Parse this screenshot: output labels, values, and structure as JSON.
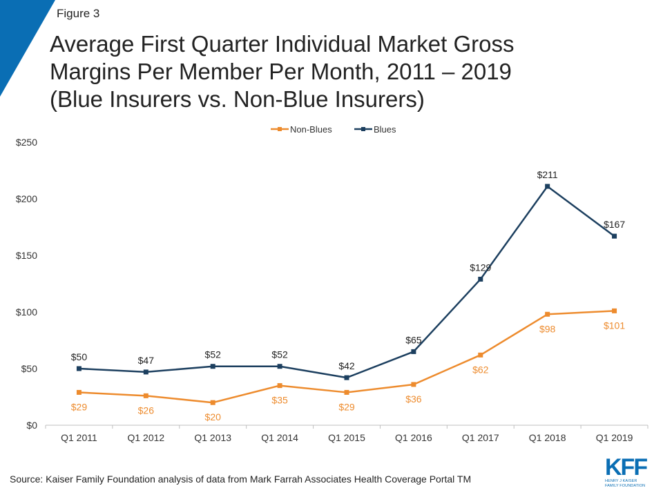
{
  "figure_label": "Figure 3",
  "title_lines": [
    "Average First Quarter Individual Market Gross",
    "Margins Per Member Per Month, 2011 – 2019",
    "(Blue Insurers vs. Non-Blue Insurers)"
  ],
  "source": "Source: Kaiser Family Foundation analysis of data from Mark Farrah Associates Health Coverage Portal TM",
  "logo": {
    "letters": "KFF",
    "sub_lines": [
      "HENRY J KAISER",
      "FAMILY FOUNDATION"
    ]
  },
  "colors": {
    "accent": "#0a6eb4",
    "non_blues": "#ed8b2d",
    "blues": "#1c3f5f",
    "axis": "#bfbfbf"
  },
  "chart_data": {
    "type": "line",
    "categories": [
      "Q1 2011",
      "Q1 2012",
      "Q1 2013",
      "Q1 2014",
      "Q1 2015",
      "Q1 2016",
      "Q1 2017",
      "Q1 2018",
      "Q1 2019"
    ],
    "y_ticks": [
      "$0",
      "$50",
      "$100",
      "$150",
      "$200",
      "$250"
    ],
    "y_tick_values": [
      0,
      50,
      100,
      150,
      200,
      250
    ],
    "ylim": [
      0,
      250
    ],
    "grid": false,
    "legend_position": "top-center",
    "series": [
      {
        "name": "Non-Blues",
        "color": "#ed8b2d",
        "values": [
          29,
          26,
          20,
          35,
          29,
          36,
          62,
          98,
          101
        ],
        "labels": [
          "$29",
          "$26",
          "$20",
          "$35",
          "$29",
          "$36",
          "$62",
          "$98",
          "$101"
        ],
        "label_position": "below"
      },
      {
        "name": "Blues",
        "color": "#1c3f5f",
        "values": [
          50,
          47,
          52,
          52,
          42,
          65,
          129,
          211,
          167
        ],
        "labels": [
          "$50",
          "$47",
          "$52",
          "$52",
          "$42",
          "$65",
          "$129",
          "$211",
          "$167"
        ],
        "label_position": "above"
      }
    ]
  }
}
